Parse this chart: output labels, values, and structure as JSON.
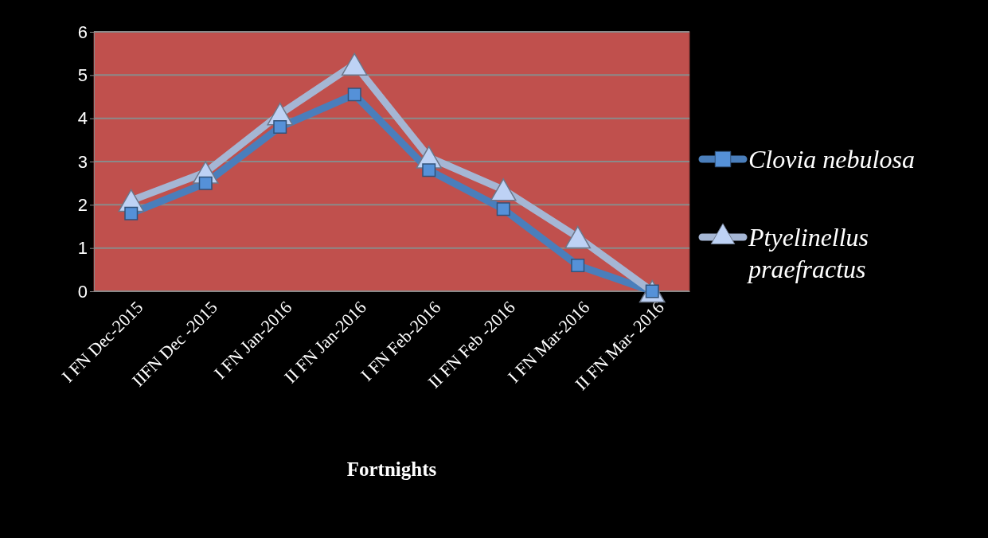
{
  "chart_data": {
    "type": "line",
    "xlabel": "Fortnights",
    "categories": [
      "I FN Dec-2015",
      "IIFN  Dec -2015",
      "I FN Jan-2016",
      "II FN Jan-2016",
      "I FN Feb-2016",
      "II FN Feb -2016",
      "I FN Mar-2016",
      "II FN Mar- 2016"
    ],
    "series": [
      {
        "name": "Clovia nebulosa",
        "color": "#4a7ebb",
        "marker": "square",
        "values": [
          1.8,
          2.5,
          3.8,
          4.55,
          2.8,
          1.9,
          0.6,
          0
        ]
      },
      {
        "name": "Ptyelinellus praefractus",
        "color": "#a5b6d4",
        "marker": "triangle",
        "values": [
          2.1,
          2.75,
          4.1,
          5.25,
          3.1,
          2.35,
          1.25,
          0
        ]
      }
    ],
    "ylim": [
      0,
      6
    ],
    "yticks": [
      0,
      1,
      2,
      3,
      4,
      5,
      6
    ],
    "grid": "y",
    "legend": "right"
  }
}
